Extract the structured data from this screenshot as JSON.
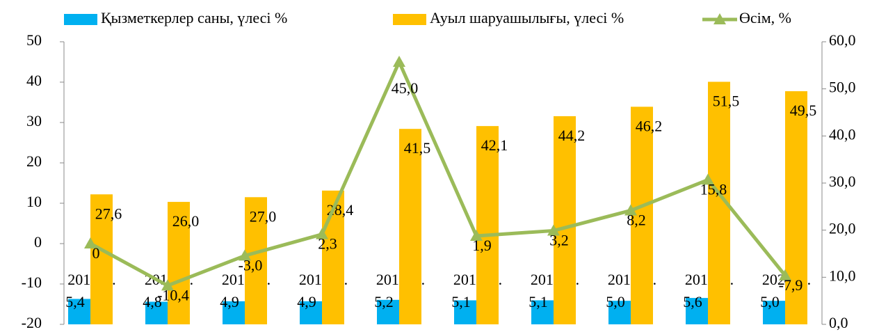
{
  "chart_data": {
    "type": "bar",
    "categories": [
      "2011 ж.",
      "2012 ж.",
      "2013 ж.",
      "2014 ж.",
      "2015 ж.",
      "2016 ж.",
      "2017 ж.",
      "2018 ж.",
      "2019 ж.",
      "2020 ж."
    ],
    "series": [
      {
        "name": "Қызметкерлер саны, үлесі %",
        "type": "bar",
        "axis": "y2",
        "color": "#00b0f0",
        "values": [
          5.4,
          4.8,
          4.9,
          4.9,
          5.2,
          5.1,
          5.1,
          5.0,
          5.6,
          5.0
        ],
        "value_labels": [
          "5,4",
          "4,8",
          "4,9",
          "4,9",
          "5,2",
          "5,1",
          "5,1",
          "5,0",
          "5,6",
          "5,0"
        ]
      },
      {
        "name": "Ауыл шаруашылығы, үлесі %",
        "type": "bar",
        "axis": "y2",
        "color": "#ffc000",
        "values": [
          27.6,
          26.0,
          27.0,
          28.4,
          41.5,
          42.1,
          44.2,
          46.2,
          51.5,
          49.5
        ],
        "value_labels": [
          "27,6",
          "26,0",
          "27,0",
          "28,4",
          "41,5",
          "42,1",
          "44,2",
          "46,2",
          "51,5",
          "49,5"
        ]
      },
      {
        "name": "Өсім, %",
        "type": "line",
        "color": "#9bbb59",
        "values": [
          0,
          -10.4,
          -3.0,
          2.3,
          45.0,
          1.9,
          3.2,
          8.2,
          15.8,
          -7.9
        ],
        "value_labels": [
          "0",
          "-10,4",
          "-3,0",
          "2,3",
          "45,0",
          "1,9",
          "3,2",
          "8,2",
          "15,8",
          "-7,9"
        ]
      }
    ],
    "ylim": [
      -20,
      50
    ],
    "yticks": [
      -20,
      -10,
      0,
      10,
      20,
      30,
      40,
      50
    ],
    "y2lim": [
      0,
      60
    ],
    "y2ticks": [
      {
        "value": 0,
        "label": "0,0"
      },
      {
        "value": 10,
        "label": "10,0"
      },
      {
        "value": 20,
        "label": "20,0"
      },
      {
        "value": 30,
        "label": "30,0"
      },
      {
        "value": 40,
        "label": "40,0"
      },
      {
        "value": 50,
        "label": "50,0"
      },
      {
        "value": 60,
        "label": "60,0"
      }
    ],
    "grid": false,
    "legend": "top"
  }
}
